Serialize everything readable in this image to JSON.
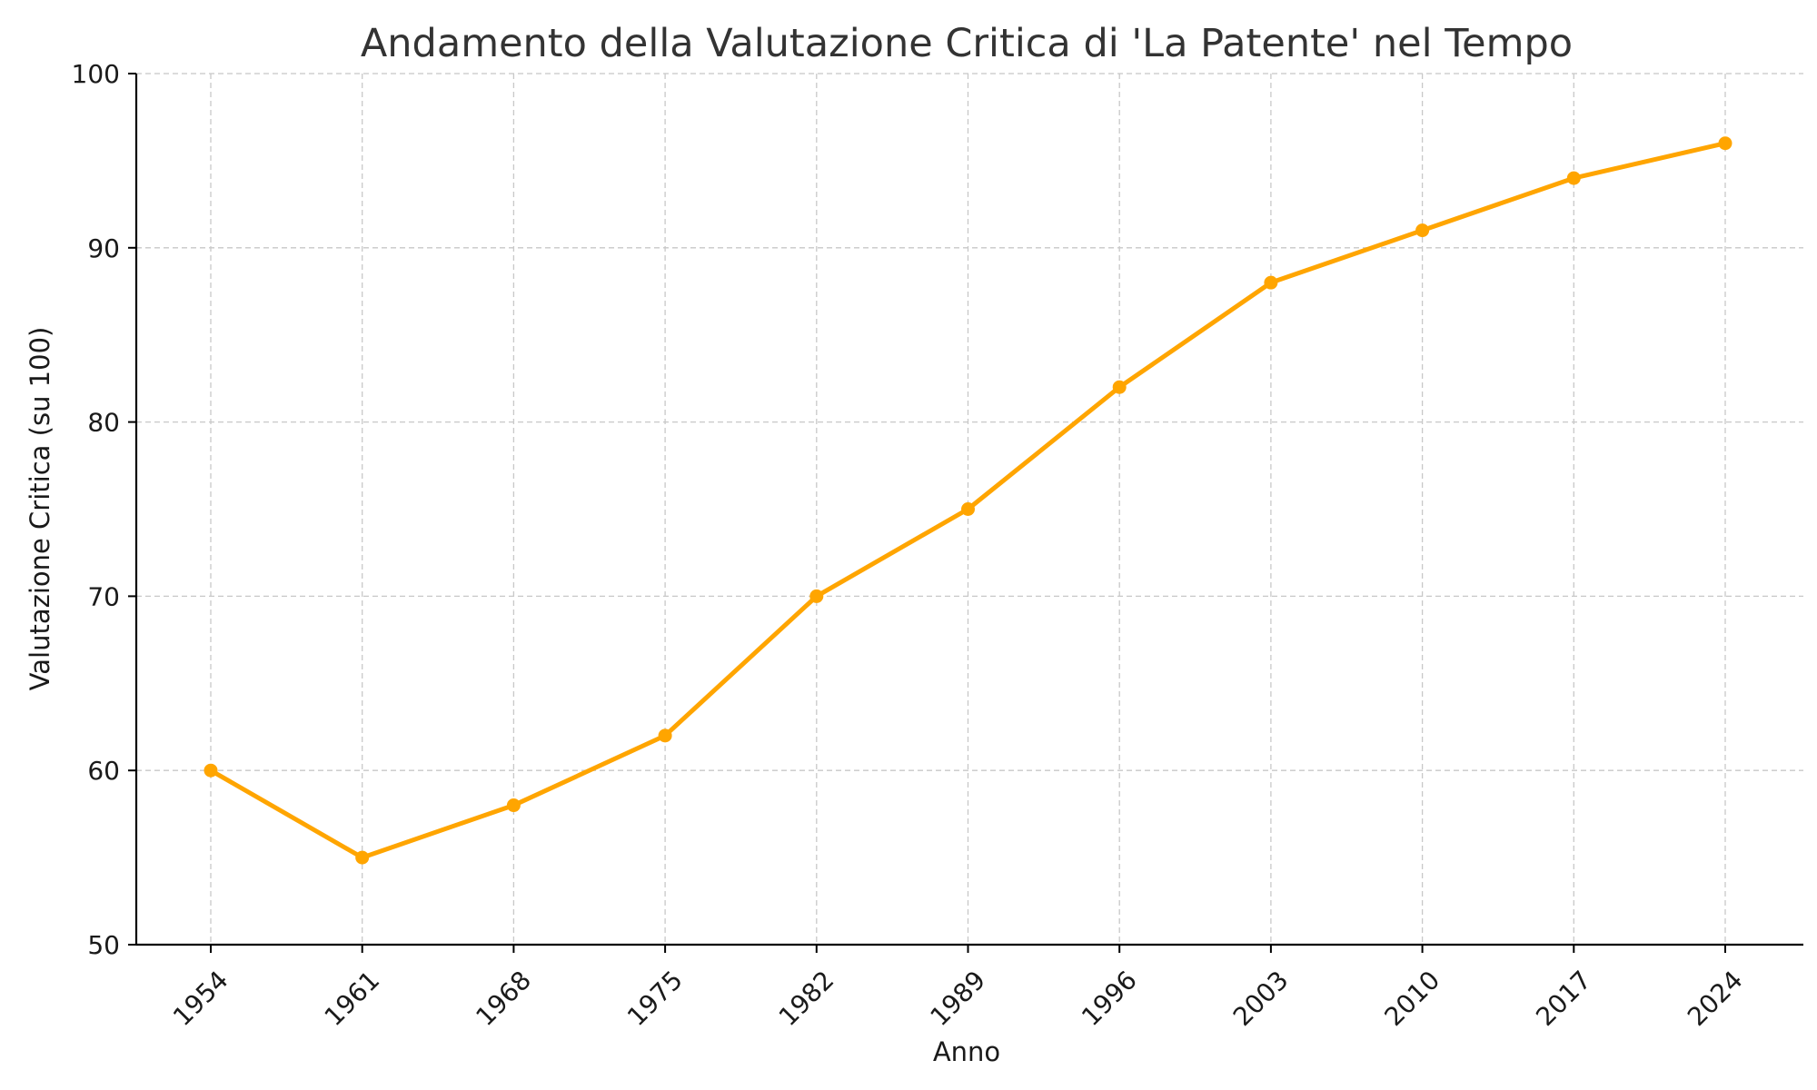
{
  "chart_data": {
    "type": "line",
    "title": "Andamento della Valutazione Critica di 'La Patente' nel Tempo",
    "xlabel": "Anno",
    "ylabel": "Valutazione Critica (su 100)",
    "categories": [
      "1954",
      "1961",
      "1968",
      "1975",
      "1982",
      "1989",
      "1996",
      "2003",
      "2010",
      "2017",
      "2024"
    ],
    "series": [
      {
        "values": [
          60,
          55,
          58,
          62,
          70,
          75,
          82,
          88,
          91,
          94,
          96
        ],
        "color": "#ffa500",
        "marker": "circle"
      }
    ],
    "ylim": [
      50,
      100
    ],
    "yticks": [
      50,
      60,
      70,
      80,
      90,
      100
    ],
    "grid": true,
    "x_tick_rotation_deg": 45
  }
}
